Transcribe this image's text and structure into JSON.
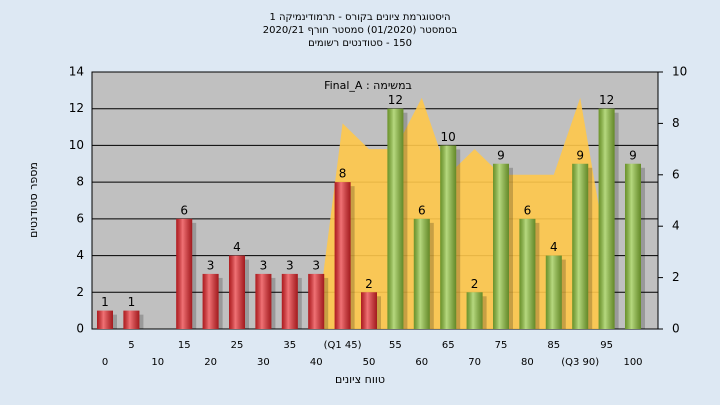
{
  "chart_data": {
    "type": "bar",
    "title": [
      "היסטוגרמת ציונים בקורס - תרמודינמיקה 1",
      "בסמסטר (01/2020) סמסטר חורף 2020/21",
      "150 - סטודנטים רשומים"
    ],
    "annotation": "במשימה : Final_A",
    "x_label": "טווח ציונים",
    "y_label": "מספר סטודנטים",
    "categories": [
      "0",
      "5",
      "10",
      "15",
      "20",
      "25",
      "30",
      "35",
      "40",
      "(Q1 45)",
      "50",
      "55",
      "60",
      "65",
      "70",
      "75",
      "80",
      "85",
      "(Q3 90)",
      "95",
      "100"
    ],
    "values": [
      1,
      1,
      null,
      6,
      3,
      4,
      3,
      3,
      3,
      8,
      2,
      12,
      6,
      10,
      2,
      9,
      6,
      4,
      9,
      12,
      9
    ],
    "colors": [
      "#e8262b",
      "#e8262b",
      "#e8262b",
      "#e8262b",
      "#e8262b",
      "#e8262b",
      "#e8262b",
      "#e8262b",
      "#e8262b",
      "#e8262b",
      "#e8262b",
      "#8fc43a",
      "#8fc43a",
      "#8fc43a",
      "#8fc43a",
      "#8fc43a",
      "#8fc43a",
      "#8fc43a",
      "#8fc43a",
      "#8fc43a",
      "#8fc43a"
    ],
    "area": {
      "axis": "y2",
      "color": "#ffc84a",
      "values": [
        null,
        null,
        null,
        null,
        null,
        null,
        null,
        null,
        0,
        8,
        7,
        7,
        9,
        6,
        7,
        6,
        6,
        6,
        9,
        3,
        null
      ]
    },
    "ylim": [
      0,
      14
    ],
    "yticks": [
      0,
      2,
      4,
      6,
      8,
      10,
      12,
      14
    ],
    "y2lim": [
      0,
      10
    ],
    "y2ticks": [
      0,
      2,
      4,
      6,
      8,
      10
    ],
    "grid": true,
    "plot_background": "#c0c0c0"
  }
}
